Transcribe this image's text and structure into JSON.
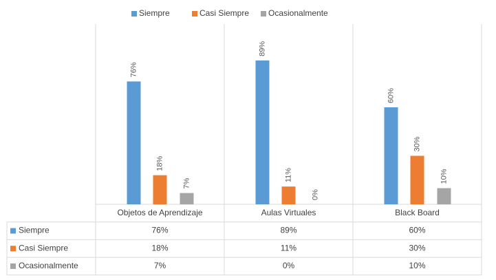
{
  "chart_data": {
    "type": "bar",
    "categories": [
      "Objetos de Aprendizaje",
      "Aulas Virtuales",
      "Black Board"
    ],
    "series": [
      {
        "name": "Siempre",
        "color": "#5b9bd5",
        "values": [
          76,
          89,
          60
        ],
        "value_labels": [
          "76%",
          "89%",
          "60%"
        ]
      },
      {
        "name": "Casi Siempre",
        "color": "#ed7d31",
        "values": [
          18,
          11,
          30
        ],
        "value_labels": [
          "18%",
          "11%",
          "30%"
        ]
      },
      {
        "name": "Ocasionalmente",
        "color": "#a5a5a5",
        "values": [
          7,
          0,
          10
        ],
        "value_labels": [
          "7%",
          "0%",
          "10%"
        ]
      }
    ],
    "ylim": [
      0,
      100
    ],
    "legend": "top"
  }
}
